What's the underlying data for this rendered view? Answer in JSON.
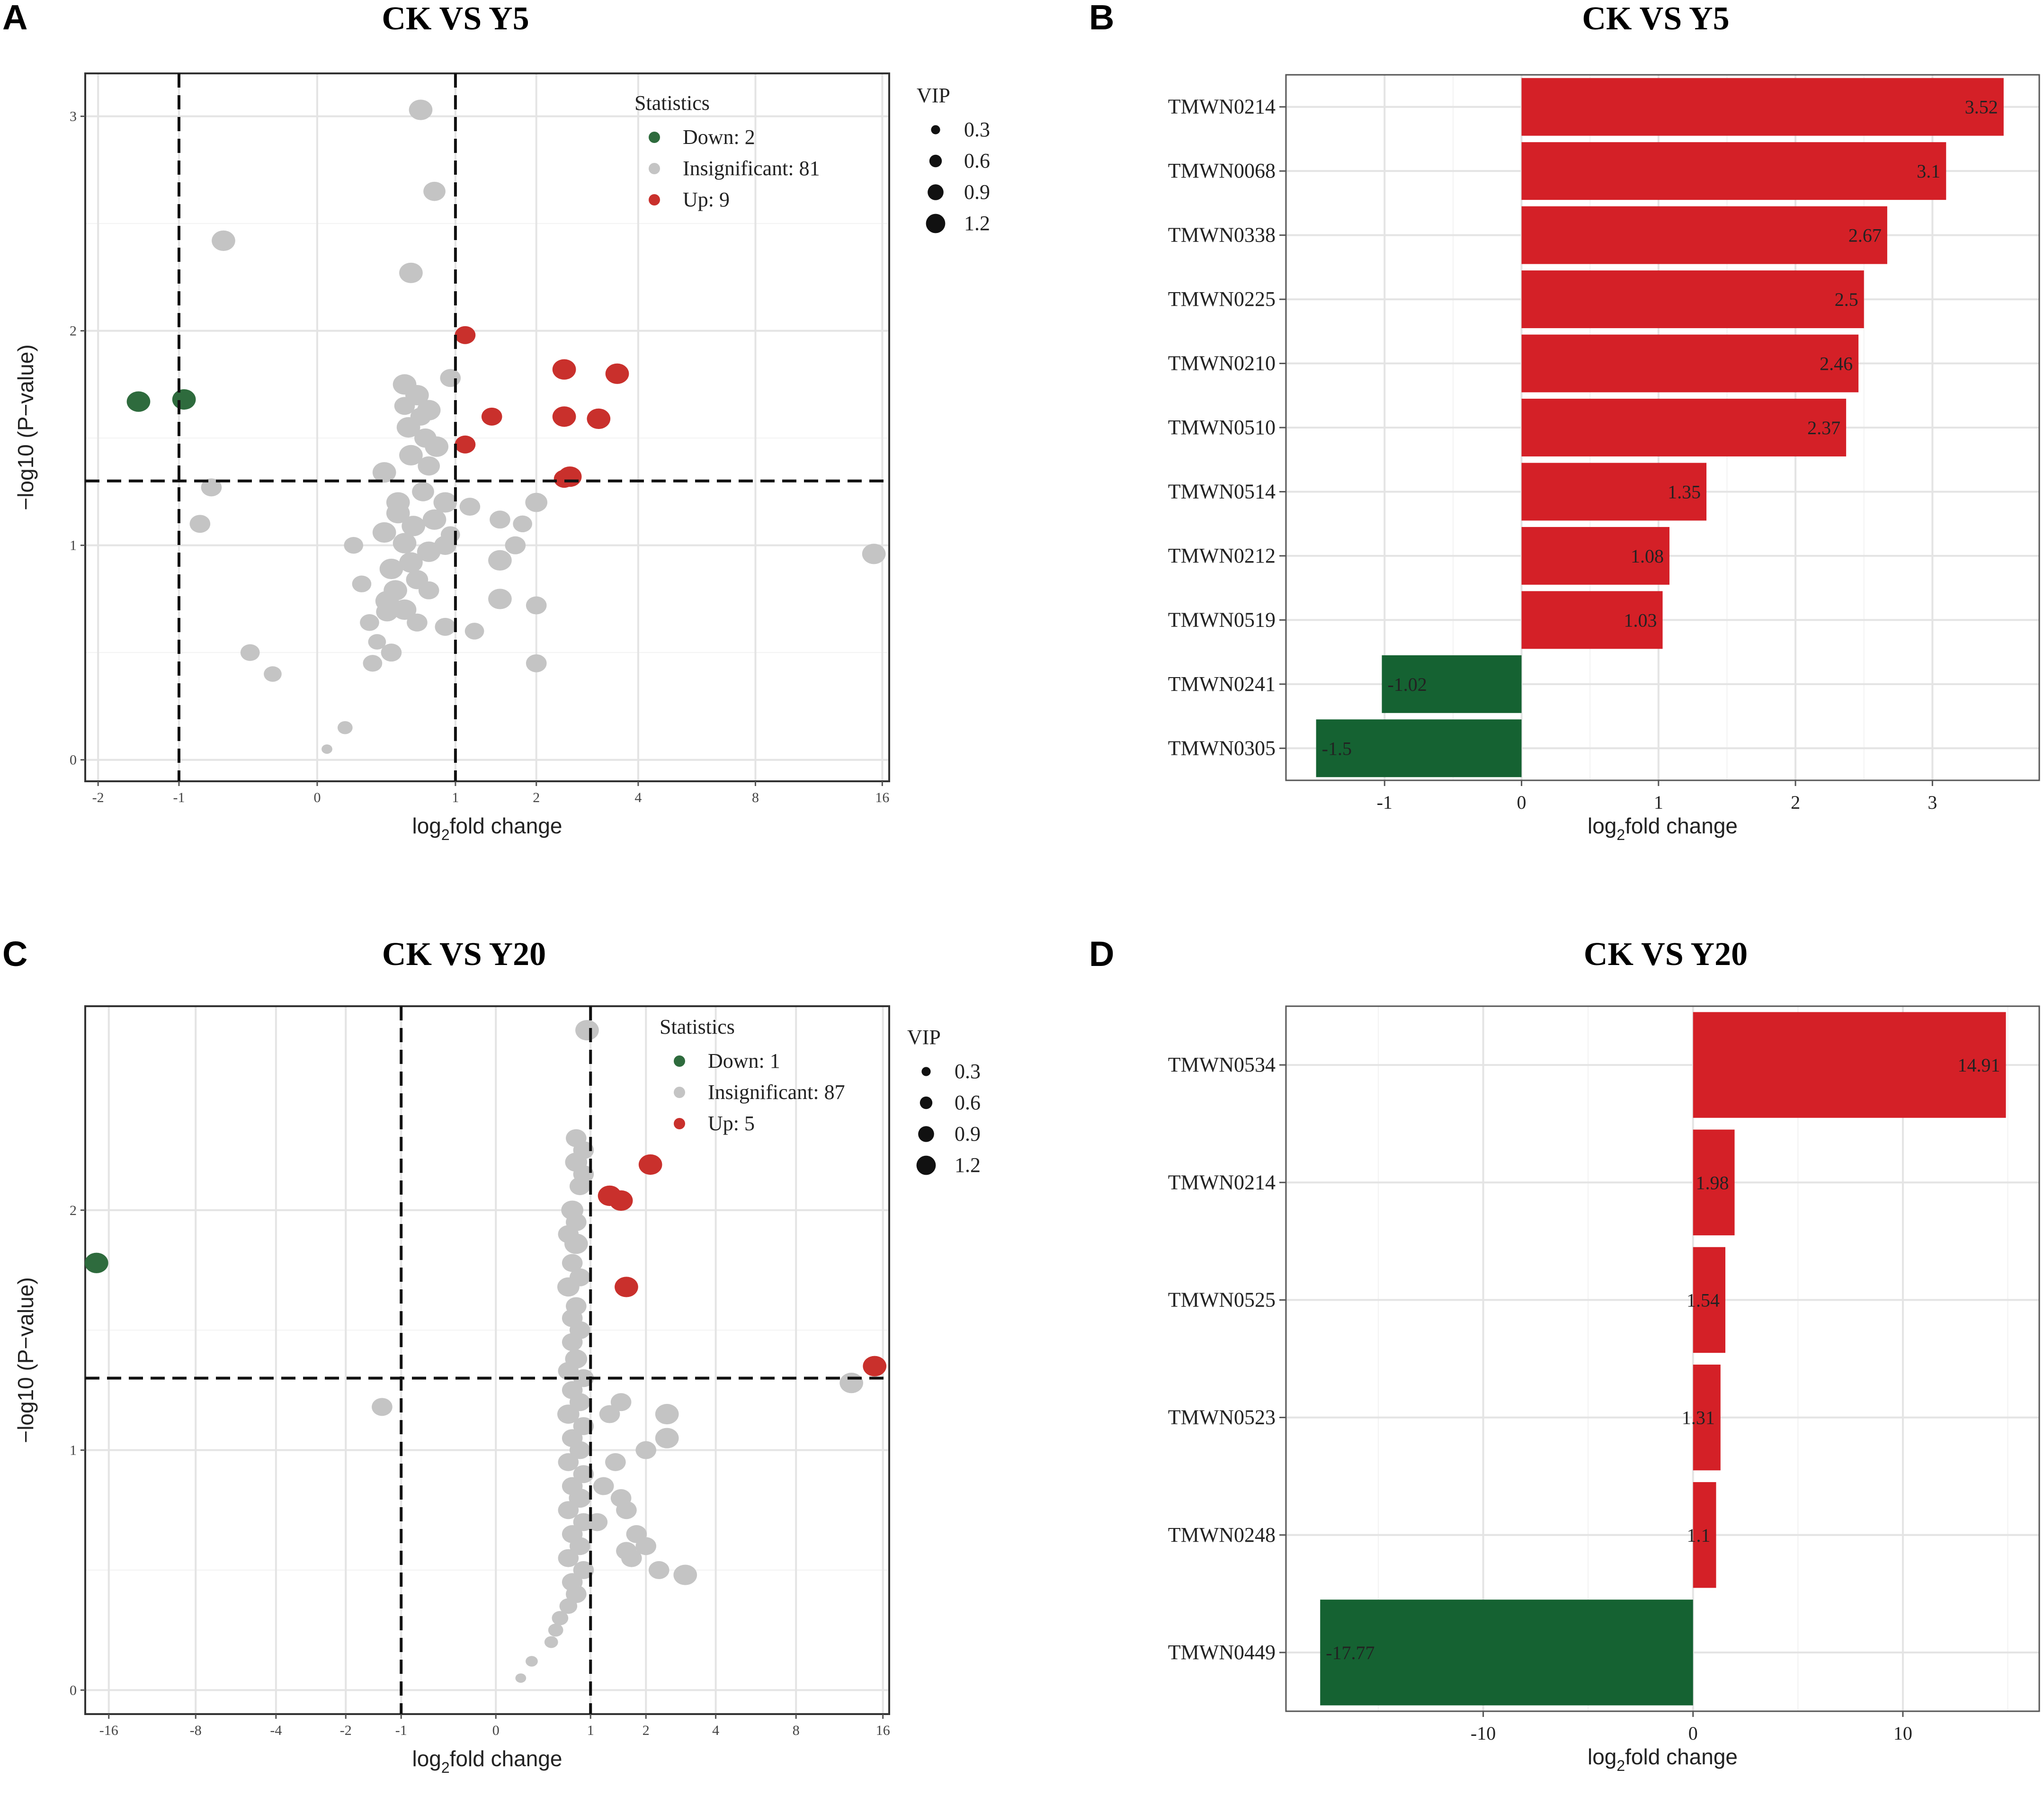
{
  "figure": {
    "panels": [
      {
        "letter": "A",
        "title": "CK VS Y5"
      },
      {
        "letter": "B",
        "title": "CK VS Y5"
      },
      {
        "letter": "C",
        "title": "CK VS Y20"
      },
      {
        "letter": "D",
        "title": "CK VS Y20"
      }
    ]
  },
  "colors": {
    "down": "#2e6b3d",
    "insignificant": "#c4c4c4",
    "up": "#c9302c",
    "bar_up": "#d42027",
    "bar_down": "#156232"
  },
  "chart_data": [
    {
      "id": "A",
      "type": "scatter",
      "title": "CK VS Y5",
      "xlabel_main": "log",
      "xlabel_sub": "2",
      "xlabel_rest": "fold change",
      "ylabel": "−log10 (P−value)",
      "xlim": [
        -2.2,
        16.6
      ],
      "ylim": [
        -0.1,
        3.2
      ],
      "xticks": [
        -2,
        -1,
        0,
        1,
        2,
        4,
        8,
        16
      ],
      "xtick_labels": [
        "-2",
        "-1",
        "0",
        "1",
        "2",
        "4",
        "8",
        "16"
      ],
      "yticks": [
        0,
        1,
        2,
        3
      ],
      "ytick_labels": [
        "0",
        "1",
        "2",
        "3"
      ],
      "thresholds": {
        "x": [
          -1,
          1
        ],
        "y": 1.3
      },
      "legend_stats": {
        "title": "Statistics",
        "items": [
          {
            "key": "down",
            "label": "Down: 2"
          },
          {
            "key": "insignificant",
            "label": "Insignificant: 81"
          },
          {
            "key": "up",
            "label": "Up: 9"
          }
        ]
      },
      "legend_vip": {
        "title": "VIP",
        "items": [
          "0.3",
          "0.6",
          "0.9",
          "1.2"
        ],
        "values": [
          0.3,
          0.6,
          0.9,
          1.2
        ]
      },
      "points": {
        "down": [
          [
            -1.45,
            1.67,
            1.2
          ],
          [
            -0.95,
            1.68,
            1.2
          ]
        ],
        "up": [
          [
            1.1,
            1.98,
            1.0
          ],
          [
            1.4,
            1.6,
            1.0
          ],
          [
            1.1,
            1.47,
            1.0
          ],
          [
            2.45,
            1.82,
            1.2
          ],
          [
            3.5,
            1.8,
            1.2
          ],
          [
            2.45,
            1.6,
            1.2
          ],
          [
            3.1,
            1.59,
            1.2
          ],
          [
            2.55,
            1.32,
            1.2
          ],
          [
            2.45,
            1.31,
            1.0
          ]
        ],
        "insignificant": [
          [
            0.68,
            3.03,
            1.2
          ],
          [
            0.8,
            2.65,
            1.1
          ],
          [
            -0.6,
            2.42,
            1.2
          ],
          [
            0.6,
            2.27,
            1.2
          ],
          [
            0.55,
            1.75,
            1.2
          ],
          [
            0.65,
            1.7,
            1.2
          ],
          [
            0.75,
            1.63,
            1.2
          ],
          [
            0.58,
            1.55,
            1.2
          ],
          [
            0.72,
            1.5,
            1.1
          ],
          [
            0.6,
            1.42,
            1.2
          ],
          [
            0.82,
            1.46,
            1.2
          ],
          [
            0.4,
            1.34,
            1.2
          ],
          [
            0.75,
            1.37,
            1.1
          ],
          [
            0.95,
            1.78,
            1.0
          ],
          [
            0.9,
            1.2,
            1.2
          ],
          [
            -0.7,
            1.27,
            1.0
          ],
          [
            0.5,
            1.2,
            1.2
          ],
          [
            0.7,
            1.25,
            1.1
          ],
          [
            0.5,
            1.15,
            1.2
          ],
          [
            0.62,
            1.09,
            1.2
          ],
          [
            0.8,
            1.12,
            1.2
          ],
          [
            0.4,
            1.06,
            1.2
          ],
          [
            0.55,
            1.01,
            1.2
          ],
          [
            0.75,
            0.97,
            1.2
          ],
          [
            0.9,
            1.0,
            1.1
          ],
          [
            0.6,
            0.92,
            1.2
          ],
          [
            0.45,
            0.89,
            1.2
          ],
          [
            0.65,
            0.84,
            1.1
          ],
          [
            0.48,
            0.79,
            1.2
          ],
          [
            0.75,
            0.79,
            1.0
          ],
          [
            0.42,
            0.74,
            1.2
          ],
          [
            0.55,
            0.7,
            1.2
          ],
          [
            0.65,
            0.64,
            1.0
          ],
          [
            0.42,
            0.69,
            1.1
          ],
          [
            0.9,
            0.62,
            1.0
          ],
          [
            0.3,
            0.64,
            0.9
          ],
          [
            0.55,
            1.65,
            1.0
          ],
          [
            0.68,
            1.6,
            1.0
          ],
          [
            1.5,
            1.12,
            1.0
          ],
          [
            1.8,
            1.1,
            0.9
          ],
          [
            1.7,
            1.0,
            1.0
          ],
          [
            1.5,
            0.93,
            1.2
          ],
          [
            1.5,
            0.75,
            1.2
          ],
          [
            2.0,
            0.72,
            1.0
          ],
          [
            2.0,
            1.2,
            1.1
          ],
          [
            1.2,
            0.6,
            0.9
          ],
          [
            -0.8,
            1.1,
            1.0
          ],
          [
            0.45,
            0.5,
            1.0
          ],
          [
            0.32,
            0.45,
            0.9
          ],
          [
            2.0,
            0.45,
            1.0
          ],
          [
            -0.4,
            0.5,
            0.9
          ],
          [
            -0.25,
            0.4,
            0.8
          ],
          [
            0.15,
            0.15,
            0.6
          ],
          [
            0.05,
            0.05,
            0.3
          ],
          [
            15.3,
            0.96,
            1.2
          ],
          [
            0.35,
            0.55,
            0.8
          ],
          [
            0.25,
            0.82,
            0.9
          ],
          [
            1.15,
            1.18,
            1.0
          ],
          [
            0.2,
            1.0,
            0.9
          ],
          [
            0.95,
            1.05,
            0.9
          ]
        ]
      }
    },
    {
      "id": "B",
      "type": "bar",
      "orientation": "horizontal",
      "title": "CK VS Y5",
      "xlabel_main": "log",
      "xlabel_sub": "2",
      "xlabel_rest": "fold change",
      "categories": [
        "TMWN0214",
        "TMWN0068",
        "TMWN0338",
        "TMWN0225",
        "TMWN0210",
        "TMWN0510",
        "TMWN0514",
        "TMWN0212",
        "TMWN0519",
        "TMWN0241",
        "TMWN0305"
      ],
      "values": [
        3.52,
        3.1,
        2.67,
        2.5,
        2.46,
        2.37,
        1.35,
        1.08,
        1.03,
        -1.02,
        -1.5
      ],
      "value_labels": [
        "3.52",
        "3.1",
        "2.67",
        "2.5",
        "2.46",
        "2.37",
        "1.35",
        "1.08",
        "1.03",
        "-1.02",
        "-1.5"
      ],
      "xlim": [
        -1.72,
        3.78
      ],
      "xticks": [
        -1,
        0,
        1,
        2,
        3
      ],
      "xtick_labels": [
        "-1",
        "0",
        "1",
        "2",
        "3"
      ]
    },
    {
      "id": "C",
      "type": "scatter",
      "title": "CK VS Y20",
      "xlabel_main": "log",
      "xlabel_sub": "2",
      "xlabel_rest": "fold change",
      "ylabel": "−log10 (P−value)",
      "xlim": [
        -19.2,
        16.8
      ],
      "ylim": [
        -0.1,
        2.85
      ],
      "xticks": [
        -16,
        -8,
        -4,
        -2,
        -1,
        0,
        1,
        2,
        4,
        8,
        16
      ],
      "xtick_labels": [
        "-16",
        "-8",
        "-4",
        "-2",
        "-1",
        "0",
        "1",
        "2",
        "4",
        "8",
        "16"
      ],
      "yticks": [
        0,
        1,
        2
      ],
      "ytick_labels": [
        "0",
        "1",
        "2"
      ],
      "thresholds": {
        "x": [
          -1,
          1
        ],
        "y": 1.3
      },
      "legend_stats": {
        "title": "Statistics",
        "items": [
          {
            "key": "down",
            "label": "Down: 1"
          },
          {
            "key": "insignificant",
            "label": "Insignificant: 87"
          },
          {
            "key": "up",
            "label": "Up: 5"
          }
        ]
      },
      "legend_vip": {
        "title": "VIP",
        "items": [
          "0.3",
          "0.6",
          "0.9",
          "1.2"
        ],
        "values": [
          0.3,
          0.6,
          0.9,
          1.2
        ]
      },
      "points": {
        "down": [
          [
            -17.6,
            1.78,
            1.2
          ]
        ],
        "up": [
          [
            2.1,
            2.19,
            1.2
          ],
          [
            1.3,
            2.06,
            1.2
          ],
          [
            1.5,
            2.04,
            1.2
          ],
          [
            1.6,
            1.68,
            1.2
          ],
          [
            15.0,
            1.35,
            1.2
          ]
        ],
        "insignificant": [
          [
            0.95,
            2.75,
            1.2
          ],
          [
            0.8,
            2.3,
            1.0
          ],
          [
            0.9,
            2.25,
            1.0
          ],
          [
            0.8,
            2.2,
            1.1
          ],
          [
            0.9,
            2.15,
            1.0
          ],
          [
            0.85,
            2.1,
            1.0
          ],
          [
            0.75,
            2.0,
            1.1
          ],
          [
            0.8,
            1.95,
            1.0
          ],
          [
            0.7,
            1.9,
            1.0
          ],
          [
            0.8,
            1.86,
            1.2
          ],
          [
            0.75,
            1.78,
            1.0
          ],
          [
            0.85,
            1.72,
            1.0
          ],
          [
            0.7,
            1.68,
            1.1
          ],
          [
            0.8,
            1.6,
            1.0
          ],
          [
            0.75,
            1.55,
            1.0
          ],
          [
            0.85,
            1.5,
            1.0
          ],
          [
            0.75,
            1.45,
            1.0
          ],
          [
            0.8,
            1.38,
            1.1
          ],
          [
            0.7,
            1.33,
            1.0
          ],
          [
            0.9,
            1.3,
            1.0
          ],
          [
            0.75,
            1.25,
            1.0
          ],
          [
            0.85,
            1.2,
            1.0
          ],
          [
            0.7,
            1.15,
            1.1
          ],
          [
            0.9,
            1.1,
            1.0
          ],
          [
            0.75,
            1.05,
            1.0
          ],
          [
            0.85,
            1.0,
            1.0
          ],
          [
            0.7,
            0.95,
            1.0
          ],
          [
            0.9,
            0.9,
            1.0
          ],
          [
            0.75,
            0.85,
            1.0
          ],
          [
            0.85,
            0.8,
            1.1
          ],
          [
            0.7,
            0.75,
            1.0
          ],
          [
            0.9,
            0.7,
            1.0
          ],
          [
            0.75,
            0.65,
            1.0
          ],
          [
            0.85,
            0.6,
            1.0
          ],
          [
            0.7,
            0.55,
            1.0
          ],
          [
            0.9,
            0.5,
            1.0
          ],
          [
            0.75,
            0.45,
            1.0
          ],
          [
            0.8,
            0.4,
            1.0
          ],
          [
            -1.3,
            1.18,
            1.0
          ],
          [
            2.5,
            1.15,
            1.2
          ],
          [
            2.5,
            1.05,
            1.2
          ],
          [
            1.3,
            1.15,
            1.0
          ],
          [
            1.5,
            0.8,
            1.0
          ],
          [
            1.6,
            0.75,
            1.0
          ],
          [
            1.2,
            0.85,
            1.0
          ],
          [
            2.0,
            0.6,
            1.0
          ],
          [
            1.7,
            0.55,
            1.0
          ],
          [
            2.3,
            0.5,
            1.0
          ],
          [
            3.0,
            0.48,
            1.2
          ],
          [
            1.6,
            0.58,
            1.0
          ],
          [
            0.7,
            0.35,
            0.8
          ],
          [
            0.6,
            0.3,
            0.7
          ],
          [
            0.55,
            0.25,
            0.6
          ],
          [
            0.5,
            0.2,
            0.5
          ],
          [
            0.3,
            0.12,
            0.4
          ],
          [
            0.2,
            0.05,
            0.3
          ],
          [
            12.5,
            1.28,
            1.2
          ],
          [
            1.4,
            0.95,
            1.0
          ],
          [
            1.1,
            0.7,
            1.0
          ],
          [
            2.0,
            1.0,
            1.0
          ],
          [
            1.5,
            1.2,
            1.0
          ],
          [
            1.8,
            0.65,
            1.0
          ]
        ]
      }
    },
    {
      "id": "D",
      "type": "bar",
      "orientation": "horizontal",
      "title": "CK VS Y20",
      "xlabel_main": "log",
      "xlabel_sub": "2",
      "xlabel_rest": "fold change",
      "categories": [
        "TMWN0534",
        "TMWN0214",
        "TMWN0525",
        "TMWN0523",
        "TMWN0248",
        "TMWN0449"
      ],
      "values": [
        14.91,
        1.98,
        1.54,
        1.31,
        1.1,
        -17.77
      ],
      "value_labels": [
        "14.91",
        "1.98",
        "1.54",
        "1.31",
        "1.1",
        "-17.77"
      ],
      "xlim": [
        -19.4,
        16.5
      ],
      "xticks": [
        -10,
        0,
        10
      ],
      "xtick_labels": [
        "-10",
        "0",
        "10"
      ]
    }
  ]
}
